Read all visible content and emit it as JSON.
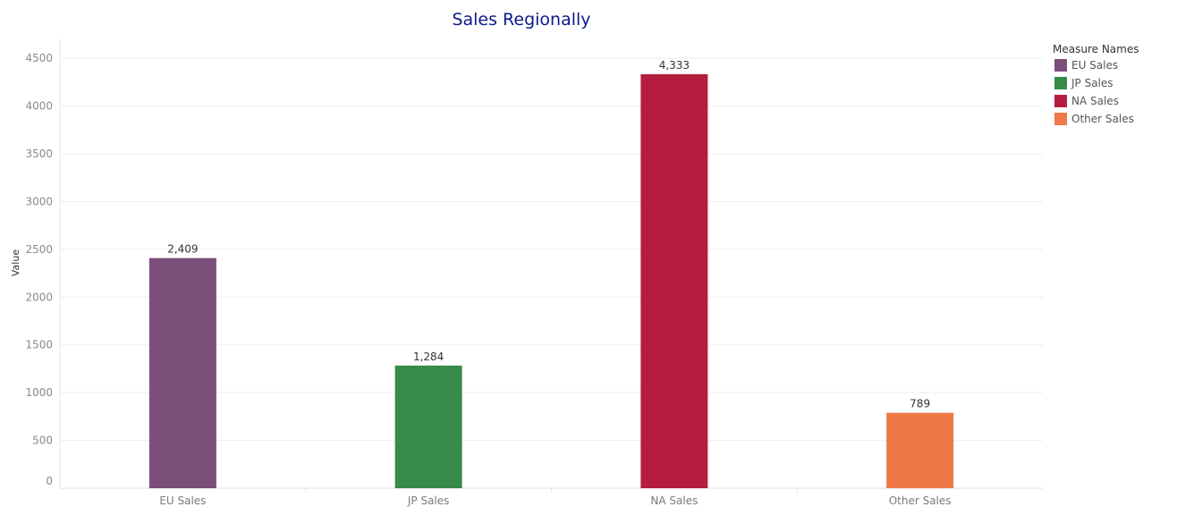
{
  "chart_data": {
    "type": "bar",
    "title": "Sales Regionally",
    "xlabel": "",
    "ylabel": "Value",
    "ylim": [
      0,
      4600
    ],
    "yticks": [
      "0",
      "500",
      "1000",
      "1500",
      "2000",
      "2500",
      "3000",
      "3500",
      "4000",
      "4500"
    ],
    "categories": [
      "EU Sales",
      "JP Sales",
      "NA Sales",
      "Other Sales"
    ],
    "values": [
      2409,
      1284,
      4333,
      789
    ],
    "data_labels": [
      "2,409",
      "1,284",
      "4,333",
      "789"
    ],
    "colors": [
      "#7b4f7a",
      "#388a48",
      "#b51d3e",
      "#ee7848"
    ],
    "grid": true,
    "legend": {
      "title": "Measure Names",
      "placement": "top-right",
      "items": [
        {
          "label": "EU Sales",
          "color": "#7b4f7a"
        },
        {
          "label": "JP Sales",
          "color": "#388a48"
        },
        {
          "label": "NA Sales",
          "color": "#b51d3e"
        },
        {
          "label": "Other Sales",
          "color": "#ee7848"
        }
      ]
    }
  }
}
